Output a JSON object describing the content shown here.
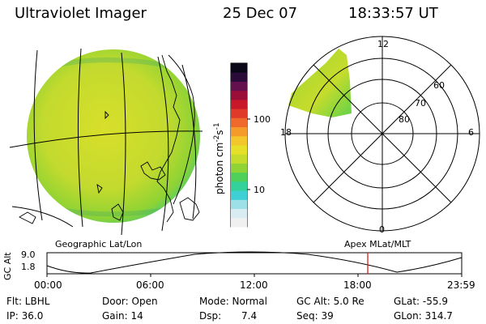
{
  "header": {
    "instrument": "Ultraviolet Imager",
    "date": "25 Dec 07",
    "time": "18:33:57 UT"
  },
  "colorbar": {
    "unit_label": "photon cm",
    "unit_exp1": "-2",
    "unit_mid": "s",
    "unit_exp2": "-1",
    "tick_100": "100",
    "tick_10": "10",
    "colors": [
      "#f0f0f0",
      "#d8ecf2",
      "#9ee0e8",
      "#3fd0d6",
      "#34d29a",
      "#4ed05a",
      "#8fd334",
      "#c6dc2c",
      "#e6e028",
      "#f3c62b",
      "#f49b2a",
      "#ef6a2a",
      "#e03a2a",
      "#c8182a",
      "#9a0e3a",
      "#64104e",
      "#2a0c3a",
      "#0a0818"
    ]
  },
  "polar_plot": {
    "mlt_labels": {
      "top": "12",
      "left": "18",
      "right": "6",
      "bottom": "0"
    },
    "lat_labels": [
      "60",
      "70",
      "80"
    ]
  },
  "captions": {
    "left": "Geographic Lat/Lon",
    "right": "Apex MLat/MLT"
  },
  "altitude_strip": {
    "axis_label": "GC Alt",
    "ymax": "9.0",
    "ymin": "1.8",
    "xticks": [
      "00:00",
      "06:00",
      "12:00",
      "18:00",
      "23:59"
    ],
    "current_marker_color": "#d62020"
  },
  "footer": {
    "row1": [
      {
        "label": "Flt: LBHL"
      },
      {
        "label": "Door: Open"
      },
      {
        "label": "Mode: Normal"
      },
      {
        "label": "GC Alt: 5.0 Re"
      },
      {
        "label": "GLat: -55.9"
      }
    ],
    "row2": [
      {
        "label": "IP: 36.0"
      },
      {
        "label": "Gain: 14"
      },
      {
        "label": "Dsp:"
      },
      {
        "label": "7.4"
      },
      {
        "label": "Seq: 39"
      },
      {
        "label": "GLon: 314.7"
      }
    ]
  }
}
